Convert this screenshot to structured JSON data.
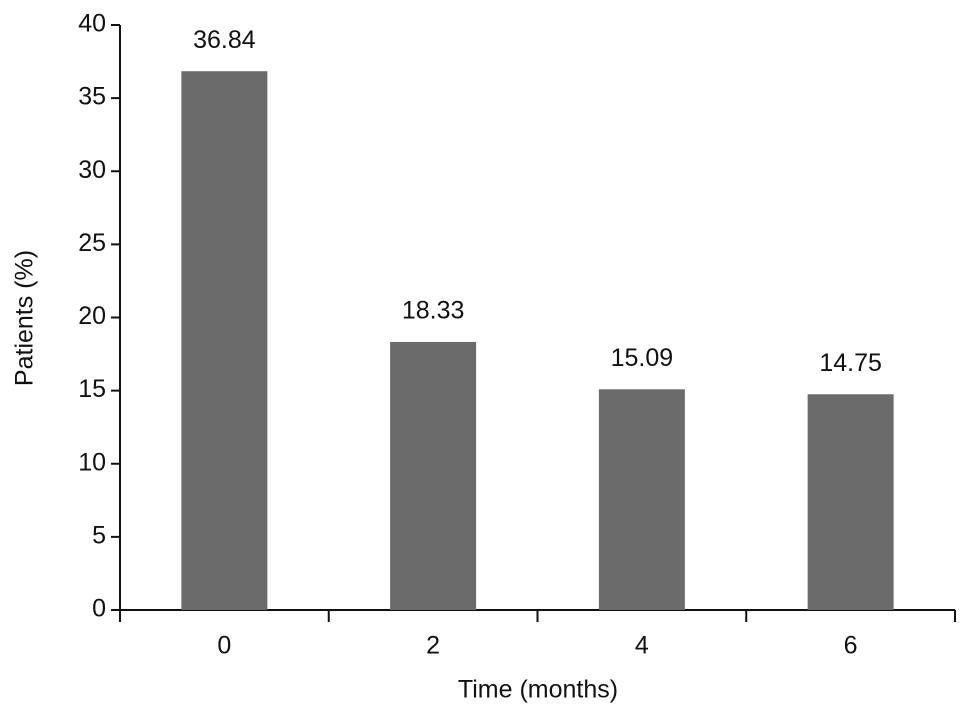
{
  "chart_data": {
    "type": "bar",
    "xlabel": "Time (months)",
    "ylabel": "Patients (%)",
    "categories": [
      "0",
      "2",
      "4",
      "6"
    ],
    "values": [
      36.84,
      18.33,
      15.09,
      14.75
    ],
    "color": "#6b6b6b",
    "ylim": [
      0,
      40
    ],
    "yticks": [
      0,
      5,
      10,
      15,
      20,
      25,
      30,
      35,
      40
    ],
    "grid": false
  }
}
